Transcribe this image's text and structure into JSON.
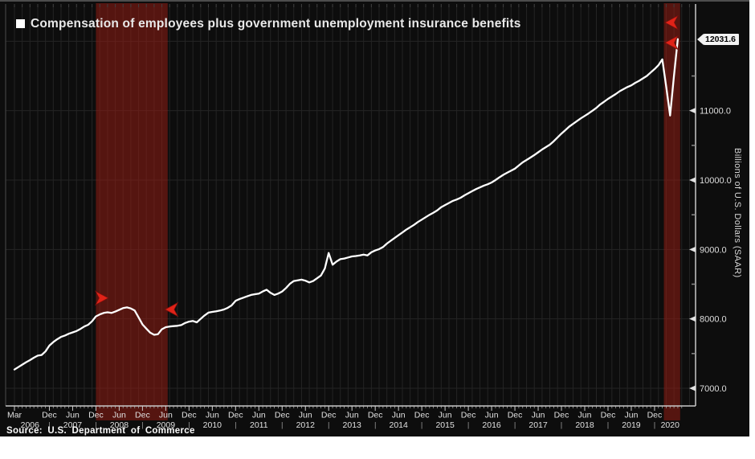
{
  "chart_data": {
    "type": "line",
    "title": "Compensation of employees plus government unemployment insurance benefits",
    "ylabel": "Billions of U.S. Dollars (SAAR)",
    "source": "Source: U.S. Department of Commerce",
    "last_value_label": "12031.6",
    "last_value": 12031.6,
    "x_start": "Mar 2006",
    "x_end": "Jun 2020",
    "frequency": "monthly",
    "ylim": [
      6745,
      12480
    ],
    "grid": true,
    "legend_position": "top-left",
    "yticks": [
      7000,
      8000,
      9000,
      10000,
      11000
    ],
    "ytick_labels": [
      "7000.0",
      "8000.0",
      "9000.0",
      "10000.0",
      "11000.0"
    ],
    "y_gridlines": [
      7000,
      8000,
      9000,
      10000,
      11000,
      12000
    ],
    "y_minor_ticks": [
      7500,
      8500,
      9500,
      10500,
      11500
    ],
    "month_ticks": [
      [
        0,
        "Mar"
      ],
      [
        9,
        "Dec"
      ],
      [
        15,
        "Jun"
      ],
      [
        21,
        "Dec"
      ],
      [
        27,
        "Jun"
      ],
      [
        33,
        "Dec"
      ],
      [
        39,
        "Jun"
      ],
      [
        45,
        "Dec"
      ],
      [
        51,
        "Jun"
      ],
      [
        57,
        "Dec"
      ],
      [
        63,
        "Jun"
      ],
      [
        69,
        "Dec"
      ],
      [
        75,
        "Jun"
      ],
      [
        81,
        "Dec"
      ],
      [
        87,
        "Jun"
      ],
      [
        93,
        "Dec"
      ],
      [
        99,
        "Jun"
      ],
      [
        105,
        "Dec"
      ],
      [
        111,
        "Jun"
      ],
      [
        117,
        "Dec"
      ],
      [
        123,
        "Jun"
      ],
      [
        129,
        "Dec"
      ],
      [
        135,
        "Jun"
      ],
      [
        141,
        "Dec"
      ],
      [
        147,
        "Jun"
      ],
      [
        153,
        "Dec"
      ],
      [
        159,
        "Jun"
      ],
      [
        165,
        "Dec"
      ]
    ],
    "year_labels": [
      [
        4,
        "2006"
      ],
      [
        15,
        "2007"
      ],
      [
        27,
        "2008"
      ],
      [
        39,
        "2009"
      ],
      [
        51,
        "2010"
      ],
      [
        63,
        "2011"
      ],
      [
        75,
        "2012"
      ],
      [
        87,
        "2013"
      ],
      [
        99,
        "2014"
      ],
      [
        111,
        "2015"
      ],
      [
        123,
        "2016"
      ],
      [
        135,
        "2017"
      ],
      [
        147,
        "2018"
      ],
      [
        159,
        "2019"
      ],
      [
        169,
        "2020"
      ]
    ],
    "year_separator_months": [
      9,
      21,
      33,
      45,
      57,
      69,
      81,
      93,
      105,
      117,
      129,
      141,
      153,
      165
    ],
    "recession_bands": [
      {
        "from_month_index": 21,
        "to_month_index": 39.5,
        "from": "Dec 2007",
        "to": "Jun 2009"
      },
      {
        "from_month_index": 167.4,
        "to_month_index": 171.6,
        "from": "Feb 2020",
        "to": "Apr 2020"
      }
    ],
    "event_markers": [
      {
        "month_index": 24.2,
        "value": 8300,
        "direction": "right"
      },
      {
        "month_index": 38.8,
        "value": 8135,
        "direction": "left"
      },
      {
        "month_index": 167.7,
        "value": 12270,
        "direction": "left"
      },
      {
        "month_index": 167.7,
        "value": 11980,
        "direction": "left"
      }
    ],
    "values": [
      7270,
      7305,
      7340,
      7375,
      7405,
      7440,
      7470,
      7480,
      7530,
      7615,
      7665,
      7705,
      7740,
      7760,
      7785,
      7805,
      7825,
      7855,
      7890,
      7915,
      7965,
      8035,
      8065,
      8085,
      8095,
      8085,
      8105,
      8130,
      8155,
      8165,
      8150,
      8120,
      8020,
      7920,
      7860,
      7800,
      7770,
      7780,
      7850,
      7880,
      7890,
      7895,
      7900,
      7910,
      7940,
      7960,
      7970,
      7950,
      8000,
      8050,
      8090,
      8100,
      8110,
      8120,
      8135,
      8160,
      8195,
      8260,
      8285,
      8305,
      8325,
      8345,
      8355,
      8365,
      8395,
      8420,
      8375,
      8345,
      8365,
      8395,
      8445,
      8505,
      8545,
      8555,
      8565,
      8550,
      8525,
      8545,
      8585,
      8625,
      8725,
      8950,
      8780,
      8825,
      8860,
      8870,
      8885,
      8900,
      8905,
      8915,
      8925,
      8915,
      8960,
      8985,
      9005,
      9035,
      9085,
      9125,
      9165,
      9205,
      9245,
      9285,
      9320,
      9355,
      9395,
      9430,
      9465,
      9500,
      9530,
      9565,
      9610,
      9640,
      9670,
      9700,
      9720,
      9745,
      9780,
      9810,
      9840,
      9870,
      9895,
      9920,
      9940,
      9965,
      10000,
      10040,
      10075,
      10105,
      10135,
      10165,
      10210,
      10255,
      10290,
      10325,
      10360,
      10400,
      10440,
      10475,
      10510,
      10560,
      10615,
      10670,
      10720,
      10770,
      10810,
      10850,
      10890,
      10925,
      10960,
      11000,
      11040,
      11090,
      11130,
      11170,
      11205,
      11240,
      11280,
      11310,
      11340,
      11365,
      11400,
      11430,
      11465,
      11500,
      11550,
      11600,
      11655,
      11740,
      11350,
      10930,
      11500,
      12031.6
    ],
    "colors": {
      "background": "#0d0d0d",
      "line": "#ffffff",
      "grid": "#242424",
      "recession_band": "rgba(152,28,20,0.52)",
      "event_marker": "#e02318",
      "axis": "#c8c8c8",
      "tick_label": "#e0e0e0",
      "value_label_bg": "#f2f2f2",
      "value_label_text": "#000000"
    }
  }
}
